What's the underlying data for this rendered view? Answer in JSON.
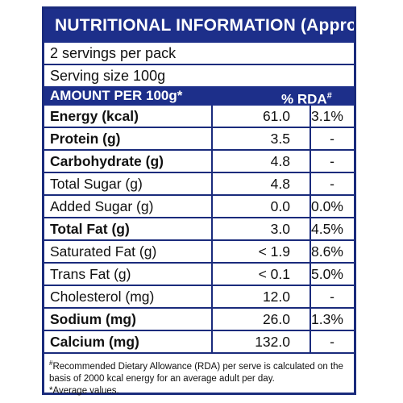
{
  "header": {
    "title": "NUTRITIONAL INFORMATION (Approx)"
  },
  "servings_per_pack": "2 servings per pack",
  "serving_size": "Serving size 100g",
  "amount_header": {
    "label": "AMOUNT PER 100g*",
    "rda": "% RDA",
    "rda_mark": "#"
  },
  "nutrients": [
    {
      "name": "Energy (kcal)",
      "value": "61.0",
      "rda": "3.1%",
      "bold": true
    },
    {
      "name": "Protein (g)",
      "value": "3.5",
      "rda": "-",
      "bold": true
    },
    {
      "name": "Carbohydrate (g)",
      "value": "4.8",
      "rda": "-",
      "bold": true
    },
    {
      "name": "Total Sugar (g)",
      "value": "4.8",
      "rda": "-",
      "bold": false
    },
    {
      "name": "Added Sugar (g)",
      "value": "0.0",
      "rda": "0.0%",
      "bold": false
    },
    {
      "name": "Total Fat (g)",
      "value": "3.0",
      "rda": "4.5%",
      "bold": true
    },
    {
      "name": "Saturated Fat (g)",
      "value": "< 1.9",
      "rda": "8.6%",
      "bold": false
    },
    {
      "name": "Trans Fat (g)",
      "value": "< 0.1",
      "rda": "5.0%",
      "bold": false
    },
    {
      "name": "Cholesterol (mg)",
      "value": "12.0",
      "rda": "-",
      "bold": false
    },
    {
      "name": "Sodium (mg)",
      "value": "26.0",
      "rda": "1.3%",
      "bold": true
    },
    {
      "name": "Calcium (mg)",
      "value": "132.0",
      "rda": "-",
      "bold": true
    }
  ],
  "footnote": {
    "mark": "#",
    "line1": "Recommended Dietary Allowance (RDA) per serve is calculated on the basis of  2000 kcal energy for an average adult per day.",
    "line2": "*Average values."
  }
}
